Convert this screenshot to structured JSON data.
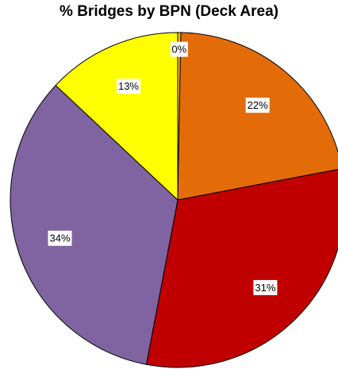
{
  "chart_data": {
    "type": "pie",
    "title": "% Bridges by BPN (Deck Area)",
    "start_angle_deg": 0,
    "direction": "clockwise",
    "legend": "none",
    "slices": [
      {
        "label": "0%",
        "value": 0.3,
        "color": "#FFC000"
      },
      {
        "label": "22%",
        "value": 21.7,
        "color": "#E36C09"
      },
      {
        "label": "31%",
        "value": 31.0,
        "color": "#C00000"
      },
      {
        "label": "34%",
        "value": 34.0,
        "color": "#8064A2"
      },
      {
        "label": "13%",
        "value": 13.0,
        "color": "#FFFF00"
      }
    ]
  }
}
